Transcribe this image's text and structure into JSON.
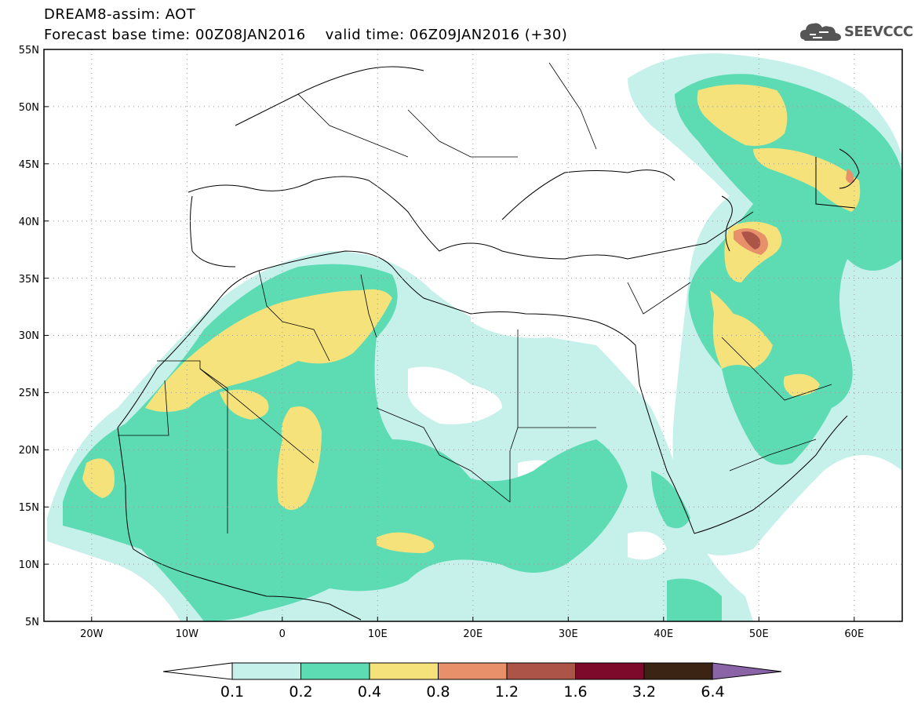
{
  "header": {
    "line1": "DREAM8-assim: AOT",
    "line2": "Forecast base time: 00Z08JAN2016    valid time: 06Z09JAN2016 (+30)",
    "logo_text": "SEEVCCC"
  },
  "map": {
    "lon_range": [
      -25,
      65
    ],
    "lat_range": [
      5,
      55
    ],
    "lat_ticks": [
      "55N",
      "50N",
      "45N",
      "40N",
      "35N",
      "30N",
      "25N",
      "20N",
      "15N",
      "10N",
      "5N"
    ],
    "lon_ticks": [
      "20W",
      "10W",
      "0",
      "10E",
      "20E",
      "30E",
      "40E",
      "50E",
      "60E"
    ],
    "grid": "dotted"
  },
  "colorbar": {
    "levels": [
      "0.1",
      "0.2",
      "0.4",
      "0.8",
      "1.2",
      "1.6",
      "3.2",
      "6.4"
    ],
    "colors": [
      "#c6f0ea",
      "#5ddcb4",
      "#f5e27a",
      "#e8906a",
      "#ad5448",
      "#7d0a2a",
      "#3b2414",
      "#8a64a6"
    ]
  },
  "legend_colors": {
    "c01": "#c6f0ea",
    "c02": "#5ddcb4",
    "c04": "#f5e27a",
    "c08": "#e8906a",
    "c12": "#ad5448"
  }
}
